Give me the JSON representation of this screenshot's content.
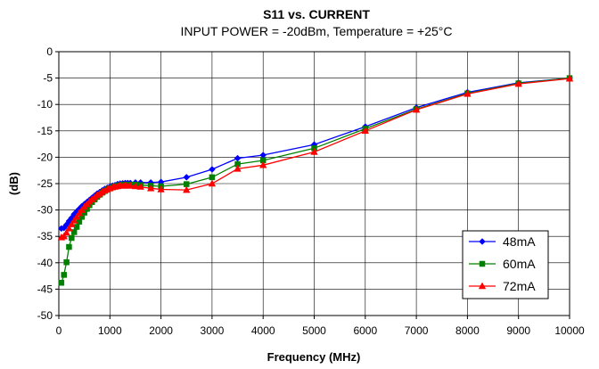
{
  "chart_data": {
    "type": "line",
    "title": "S11 vs. CURRENT",
    "subtitle": "INPUT POWER = -20dBm, Temperature = +25°C",
    "xlabel": "Frequency (MHz)",
    "ylabel": "(dB)",
    "xlim": [
      0,
      10000
    ],
    "ylim": [
      -50,
      0
    ],
    "x_ticks": [
      0,
      1000,
      2000,
      3000,
      4000,
      5000,
      6000,
      7000,
      8000,
      9000,
      10000
    ],
    "y_ticks": [
      0,
      -5,
      -10,
      -15,
      -20,
      -25,
      -30,
      -35,
      -40,
      -45,
      -50
    ],
    "grid": true,
    "legend_position": "bottom-right",
    "series": [
      {
        "name": "48mA",
        "color": "#0000ff",
        "marker": "diamond",
        "x": [
          50,
          100,
          150,
          200,
          250,
          300,
          350,
          400,
          450,
          500,
          550,
          600,
          650,
          700,
          750,
          800,
          850,
          900,
          950,
          1000,
          1050,
          1100,
          1150,
          1200,
          1250,
          1300,
          1350,
          1400,
          1500,
          1600,
          1800,
          2000,
          2500,
          3000,
          3500,
          4000,
          5000,
          6000,
          7000,
          8000,
          9000,
          10000
        ],
        "y": [
          -33.5,
          -33.4,
          -32.8,
          -32.1,
          -31.5,
          -30.8,
          -30.3,
          -29.8,
          -29.3,
          -28.9,
          -28.5,
          -28.1,
          -27.7,
          -27.3,
          -26.9,
          -26.6,
          -26.3,
          -26.0,
          -25.8,
          -25.6,
          -25.4,
          -25.3,
          -25.1,
          -25.0,
          -24.95,
          -24.9,
          -24.9,
          -24.9,
          -24.8,
          -24.8,
          -24.8,
          -24.7,
          -23.8,
          -22.3,
          -20.2,
          -19.6,
          -17.6,
          -14.2,
          -10.6,
          -7.7,
          -5.9,
          -5.0
        ]
      },
      {
        "name": "60mA",
        "color": "#008000",
        "marker": "square",
        "x": [
          50,
          100,
          150,
          200,
          250,
          300,
          350,
          400,
          450,
          500,
          550,
          600,
          650,
          700,
          750,
          800,
          850,
          900,
          950,
          1000,
          1050,
          1100,
          1150,
          1200,
          1250,
          1300,
          1350,
          1400,
          1500,
          1600,
          1800,
          2000,
          2500,
          3000,
          3500,
          4000,
          5000,
          6000,
          7000,
          8000,
          9000,
          10000
        ],
        "y": [
          -43.8,
          -42.3,
          -39.9,
          -37.0,
          -35.3,
          -34.2,
          -33.2,
          -32.2,
          -31.3,
          -30.5,
          -29.8,
          -29.1,
          -28.5,
          -28.0,
          -27.5,
          -27.1,
          -26.7,
          -26.4,
          -26.1,
          -25.9,
          -25.7,
          -25.5,
          -25.4,
          -25.3,
          -25.2,
          -25.2,
          -25.2,
          -25.2,
          -25.2,
          -25.3,
          -25.4,
          -25.5,
          -25.1,
          -23.8,
          -21.3,
          -20.6,
          -18.3,
          -14.6,
          -10.9,
          -7.9,
          -6.0,
          -5.0
        ]
      },
      {
        "name": "72mA",
        "color": "#ff0000",
        "marker": "triangle",
        "x": [
          50,
          100,
          150,
          200,
          250,
          300,
          350,
          400,
          450,
          500,
          550,
          600,
          650,
          700,
          750,
          800,
          850,
          900,
          950,
          1000,
          1050,
          1100,
          1150,
          1200,
          1250,
          1300,
          1350,
          1400,
          1500,
          1600,
          1800,
          2000,
          2500,
          3000,
          3500,
          4000,
          5000,
          6000,
          7000,
          8000,
          9000,
          10000
        ],
        "y": [
          -35.2,
          -35.0,
          -34.3,
          -33.5,
          -32.7,
          -32.0,
          -31.3,
          -30.6,
          -30.0,
          -29.4,
          -28.9,
          -28.4,
          -28.0,
          -27.6,
          -27.2,
          -26.9,
          -26.6,
          -26.3,
          -26.1,
          -25.9,
          -25.7,
          -25.6,
          -25.5,
          -25.4,
          -25.4,
          -25.4,
          -25.4,
          -25.4,
          -25.5,
          -25.6,
          -25.9,
          -26.1,
          -26.2,
          -25.0,
          -22.2,
          -21.5,
          -19.0,
          -15.0,
          -11.0,
          -8.0,
          -6.1,
          -5.1
        ]
      }
    ]
  }
}
